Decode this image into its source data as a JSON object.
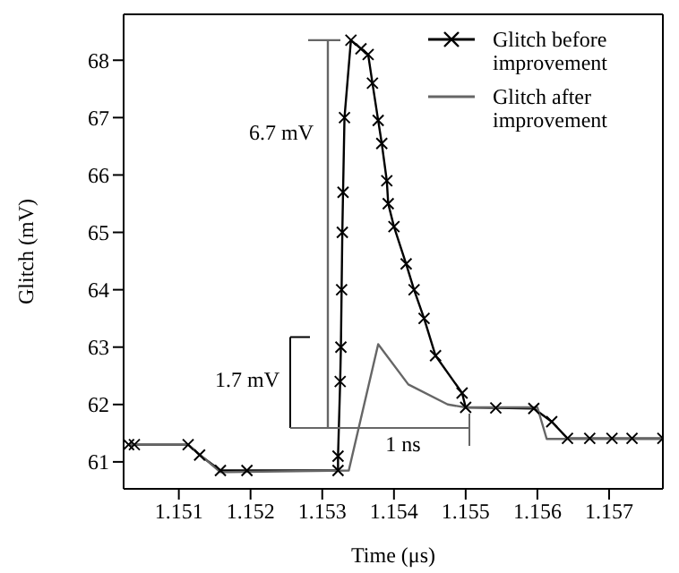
{
  "chart_data": {
    "type": "line",
    "xlabel": "Time (μs)",
    "ylabel": "Glitch (mV)",
    "xlim": [
      1.15023,
      1.15775
    ],
    "xticks": [
      1.151,
      1.152,
      1.153,
      1.154,
      1.155,
      1.156,
      1.157
    ],
    "ylim": [
      60.53,
      68.8
    ],
    "yticks": [
      61,
      62,
      63,
      64,
      65,
      66,
      67,
      68
    ],
    "legend": "top right",
    "annotations": [
      "6.7 mV",
      "1.7 mV",
      "1 ns"
    ],
    "series": [
      {
        "name": "Glitch before improvement",
        "color": "#000000",
        "marker": "cross",
        "x": [
          1.1503,
          1.15038,
          1.15113,
          1.15129,
          1.15158,
          1.15195,
          1.15322,
          1.15322,
          1.15325,
          1.15326,
          1.15327,
          1.15328,
          1.15329,
          1.15331,
          1.1534,
          1.15354,
          1.15364,
          1.1537,
          1.15378,
          1.15383,
          1.1539,
          1.15392,
          1.154,
          1.15417,
          1.15428,
          1.15442,
          1.15458,
          1.15495,
          1.155,
          1.15542,
          1.15595,
          1.1562,
          1.15642,
          1.15673,
          1.15704,
          1.15732,
          1.15775
        ],
        "values": [
          61.3,
          61.3,
          61.3,
          61.12,
          60.85,
          60.85,
          60.85,
          61.1,
          62.4,
          63.0,
          64.0,
          65.0,
          65.7,
          67.0,
          68.35,
          68.2,
          68.1,
          67.6,
          66.95,
          66.55,
          65.9,
          65.5,
          65.1,
          64.45,
          64.0,
          63.5,
          62.85,
          62.2,
          61.95,
          61.94,
          61.93,
          61.7,
          61.41,
          61.41,
          61.41,
          61.41,
          61.41
        ]
      },
      {
        "name": "Glitch after improvement",
        "color": "#666666",
        "marker": "none",
        "x": [
          1.1503,
          1.15113,
          1.15158,
          1.15337,
          1.15378,
          1.1542,
          1.15475,
          1.155,
          1.156,
          1.15613,
          1.15775
        ],
        "values": [
          61.3,
          61.3,
          60.82,
          60.85,
          63.05,
          62.35,
          62.0,
          61.95,
          61.95,
          61.4,
          61.4
        ]
      }
    ]
  }
}
